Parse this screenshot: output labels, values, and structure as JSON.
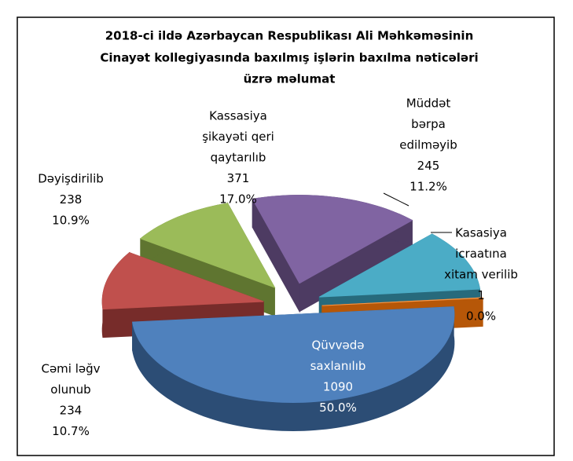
{
  "chart_data": {
    "type": "pie3d",
    "title": [
      "2018-ci ildə Azərbaycan Respublikası Ali Məhkəməsinin",
      "Cinayət  kollegiyasında  baxılmış işlərin baxılma nəticələri",
      "üzrə məlumat"
    ],
    "categories": [
      [
        "Qüvvədə",
        "saxlanılıb"
      ],
      [
        "Cəmi  ləğv",
        "olunub"
      ],
      [
        "Dəyişdirilib"
      ],
      [
        "Kassasiya",
        "şikayəti qeri",
        "qaytarılıb"
      ],
      [
        "Müddət",
        "bərpa",
        "edilməyib"
      ],
      [
        "Kasasiya",
        "icraatına",
        "xitam verilib"
      ]
    ],
    "values": [
      1090,
      234,
      238,
      371,
      245,
      1
    ],
    "percents": [
      50,
      10.7,
      10.9,
      17,
      11.2,
      0
    ],
    "percent_labels": [
      "50.0%",
      "10.7%",
      "10.9%",
      "17.0%",
      "11.2%",
      "0.0%"
    ],
    "colors": [
      "#4f81bd",
      "#c0504d",
      "#9bbb59",
      "#8064a2",
      "#4bacc6",
      "#f79646"
    ],
    "side_colors": [
      "#2c4d75",
      "#772c2a",
      "#5f7530",
      "#4d3b62",
      "#276a7c",
      "#b65708"
    ]
  }
}
